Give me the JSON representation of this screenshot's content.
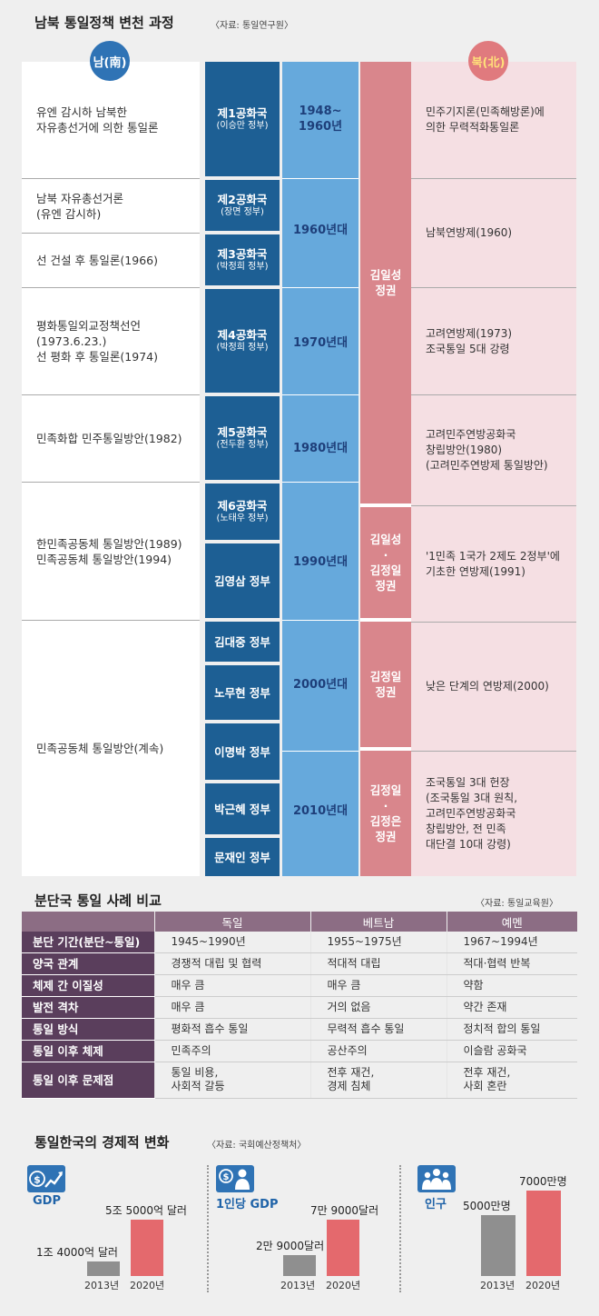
{
  "timeline": {
    "title": "남북 통일정책 변천 과정",
    "source": "〈자료: 통일연구원〉",
    "south_badge": "남(南)",
    "north_badge": "북(北)",
    "south_rows": [
      {
        "text": "유엔 감시하 남북한\n자유총선거에 의한 통일론"
      },
      {
        "text": "남북 자유총선거론\n(유엔 감시하)"
      },
      {
        "text": "선 건설 후 통일론(1966)"
      },
      {
        "text": "평화통일외교정책선언\n(1973.6.23.)\n선 평화 후 통일론(1974)"
      },
      {
        "text": "민족화합 민주통일방안(1982)"
      },
      {
        "text": "한민족공동체 통일방안(1989)\n민족공동체 통일방안(1994)"
      },
      {
        "text": "민족공동체 통일방안(계속)"
      }
    ],
    "governments": [
      {
        "name": "제1공화국",
        "sub": "(이승만 정부)"
      },
      {
        "name": "제2공화국",
        "sub": "(장면 정부)"
      },
      {
        "name": "제3공화국",
        "sub": "(박정희 정부)"
      },
      {
        "name": "제4공화국",
        "sub": "(박정희 정부)"
      },
      {
        "name": "제5공화국",
        "sub": "(전두환 정부)"
      },
      {
        "name": "제6공화국",
        "sub": "(노태우 정부)"
      },
      {
        "name": "김영삼 정부",
        "sub": ""
      },
      {
        "name": "김대중 정부",
        "sub": ""
      },
      {
        "name": "노무현 정부",
        "sub": ""
      },
      {
        "name": "이명박 정부",
        "sub": ""
      },
      {
        "name": "박근혜 정부",
        "sub": ""
      },
      {
        "name": "문재인 정부",
        "sub": ""
      }
    ],
    "eras": [
      "1948~\n1960년",
      "1960년대",
      "1970년대",
      "1980년대",
      "1990년대",
      "2000년대",
      "2010년대"
    ],
    "rulers": [
      "김일성\n정권",
      "김일성\n·\n김정일\n정권",
      "김정일\n정권",
      "김정일\n·\n김정은\n정권"
    ],
    "north_rows": [
      {
        "text": "민주기지론(민족해방론)에\n의한 무력적화통일론"
      },
      {
        "text": "남북연방제(1960)"
      },
      {
        "text": "고려연방제(1973)\n 조국통일 5대 강령"
      },
      {
        "text": "고려민주연방공화국\n창립방안(1980)\n(고려민주연방제 통일방안)"
      },
      {
        "text": "'1민족 1국가 2제도 2정부'에\n기초한 연방제(1991)"
      },
      {
        "text": "낮은 단계의 연방제(2000)"
      },
      {
        "text": "조국통일 3대 헌장\n(조국통일 3대 원칙,\n 고려민주연방공화국\n 창립방안, 전 민족\n 대단결 10대 강령)"
      }
    ]
  },
  "cases": {
    "title": "분단국 통일 사례 비교",
    "source": "〈자료: 통일교육원〉",
    "columns": [
      "",
      "독일",
      "베트남",
      "예멘"
    ],
    "rows": [
      {
        "label": "분단 기간(분단~통일)",
        "values": [
          "1945~1990년",
          "1955~1975년",
          "1967~1994년"
        ]
      },
      {
        "label": "양국 관계",
        "values": [
          "경쟁적 대립 및 협력",
          "적대적 대립",
          "적대·협력 반복"
        ]
      },
      {
        "label": "체제 간 이질성",
        "values": [
          "매우 큼",
          "매우 큼",
          "약함"
        ]
      },
      {
        "label": "발전 격차",
        "values": [
          "매우 큼",
          "거의 없음",
          "약간 존재"
        ]
      },
      {
        "label": "통일 방식",
        "values": [
          "평화적 흡수 통일",
          "무력적 흡수 통일",
          "정치적 합의 통일"
        ]
      },
      {
        "label": "통일 이후 체제",
        "values": [
          "민족주의",
          "공산주의",
          "이슬람 공화국"
        ]
      },
      {
        "label": "통일 이후 문제점",
        "values": [
          "통일 비용,\n사회적 갈등",
          "전후 재건,\n경제 침체",
          "전후 재건,\n사회 혼란"
        ]
      }
    ]
  },
  "economy": {
    "title": "통일한국의 경제적 변화",
    "source": "〈자료: 국회예산정책처〉",
    "colors": {
      "bar_2013": "#8f8f8f",
      "bar_2020": "#e4696d",
      "icon": "#2f73b5"
    },
    "panels": [
      {
        "label": "GDP",
        "icon": "dollar-growth-icon",
        "years": [
          "2013년",
          "2020년"
        ],
        "labels": [
          "1조 4000억 달러",
          "5조 5000억 달러"
        ],
        "values": [
          1.4,
          5.5
        ],
        "unit": "조 달러"
      },
      {
        "label": "1인당 GDP",
        "icon": "dollar-person-icon",
        "years": [
          "2013년",
          "2020년"
        ],
        "labels": [
          "2만 9000달러",
          "7만 9000달러"
        ],
        "values": [
          29000,
          79000
        ],
        "unit": "달러"
      },
      {
        "label": "인구",
        "icon": "people-icon",
        "years": [
          "2013년",
          "2020년"
        ],
        "labels": [
          "5000만명",
          "7000만명"
        ],
        "values": [
          5000,
          7000
        ],
        "unit": "만명"
      }
    ]
  }
}
